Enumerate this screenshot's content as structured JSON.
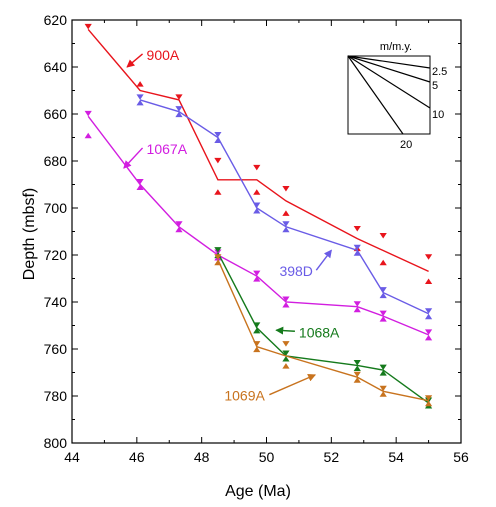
{
  "chart_data": {
    "type": "line",
    "xlabel": "Age (Ma)",
    "ylabel": "Depth (mbsf)",
    "xlim": [
      44,
      56
    ],
    "ylim": [
      620,
      800
    ],
    "y_inverted": true,
    "x_ticks": [
      44,
      46,
      48,
      50,
      52,
      54,
      56
    ],
    "y_ticks": [
      620,
      640,
      660,
      680,
      700,
      720,
      740,
      760,
      780,
      800
    ],
    "legend": "none",
    "series": [
      {
        "name": "900A",
        "color": "#e8141c",
        "line": [
          [
            44.5,
            624
          ],
          [
            46.1,
            650
          ],
          [
            47.3,
            654
          ],
          [
            48.5,
            688
          ],
          [
            49.7,
            688
          ],
          [
            50.6,
            697
          ],
          [
            52.8,
            713
          ],
          [
            55.0,
            727
          ]
        ],
        "points": [
          {
            "x": 44.5,
            "y": 624,
            "m": "dn"
          },
          {
            "x": 46.1,
            "y": 646,
            "m": "up"
          },
          {
            "x": 47.3,
            "y": 654,
            "m": "dn"
          },
          {
            "x": 48.5,
            "y": 681,
            "m": "dn"
          },
          {
            "x": 48.5,
            "y": 692,
            "m": "up"
          },
          {
            "x": 49.7,
            "y": 684,
            "m": "dn"
          },
          {
            "x": 49.7,
            "y": 692,
            "m": "up"
          },
          {
            "x": 50.6,
            "y": 693,
            "m": "dn"
          },
          {
            "x": 50.6,
            "y": 701,
            "m": "up"
          },
          {
            "x": 52.8,
            "y": 710,
            "m": "dn"
          },
          {
            "x": 52.8,
            "y": 716,
            "m": "up"
          },
          {
            "x": 53.6,
            "y": 713,
            "m": "dn"
          },
          {
            "x": 53.6,
            "y": 722,
            "m": "up"
          },
          {
            "x": 55.0,
            "y": 722,
            "m": "dn"
          },
          {
            "x": 55.0,
            "y": 730,
            "m": "up"
          }
        ]
      },
      {
        "name": "398D",
        "color": "#6a5ce6",
        "line": [
          [
            46.1,
            654
          ],
          [
            47.3,
            659
          ],
          [
            48.5,
            670
          ],
          [
            49.7,
            700
          ],
          [
            50.6,
            708
          ],
          [
            52.8,
            718
          ],
          [
            53.6,
            736
          ],
          [
            55.0,
            745
          ]
        ],
        "points": [
          {
            "x": 46.1,
            "y": 654,
            "m": "bt"
          },
          {
            "x": 47.3,
            "y": 659,
            "m": "bt"
          },
          {
            "x": 48.5,
            "y": 670,
            "m": "bt"
          },
          {
            "x": 49.7,
            "y": 700,
            "m": "bt"
          },
          {
            "x": 50.6,
            "y": 708,
            "m": "bt"
          },
          {
            "x": 52.8,
            "y": 718,
            "m": "bt"
          },
          {
            "x": 53.6,
            "y": 736,
            "m": "bt"
          },
          {
            "x": 55.0,
            "y": 745,
            "m": "bt"
          }
        ]
      },
      {
        "name": "1067A",
        "color": "#d21ee0",
        "line": [
          [
            44.5,
            661
          ],
          [
            46.1,
            690
          ],
          [
            47.3,
            708
          ],
          [
            48.5,
            720
          ],
          [
            49.7,
            729
          ],
          [
            50.6,
            740
          ],
          [
            52.8,
            742
          ],
          [
            53.6,
            746
          ],
          [
            55.0,
            754
          ]
        ],
        "points": [
          {
            "x": 44.5,
            "y": 661,
            "m": "dn"
          },
          {
            "x": 44.5,
            "y": 668,
            "m": "up"
          },
          {
            "x": 46.1,
            "y": 690,
            "m": "bt"
          },
          {
            "x": 47.3,
            "y": 708,
            "m": "bt"
          },
          {
            "x": 48.5,
            "y": 720,
            "m": "bt"
          },
          {
            "x": 49.7,
            "y": 729,
            "m": "bt"
          },
          {
            "x": 50.6,
            "y": 740,
            "m": "bt"
          },
          {
            "x": 52.8,
            "y": 742,
            "m": "bt"
          },
          {
            "x": 53.6,
            "y": 746,
            "m": "bt"
          },
          {
            "x": 55.0,
            "y": 754,
            "m": "bt"
          }
        ]
      },
      {
        "name": "1068A",
        "color": "#157a1c",
        "line": [
          [
            48.5,
            719
          ],
          [
            49.7,
            751
          ],
          [
            50.6,
            763
          ],
          [
            52.8,
            767
          ],
          [
            53.6,
            769
          ],
          [
            55.0,
            783
          ]
        ],
        "points": [
          {
            "x": 48.5,
            "y": 719,
            "m": "bt"
          },
          {
            "x": 49.7,
            "y": 751,
            "m": "bt"
          },
          {
            "x": 50.6,
            "y": 763,
            "m": "bt"
          },
          {
            "x": 52.8,
            "y": 767,
            "m": "bt"
          },
          {
            "x": 53.6,
            "y": 769,
            "m": "bt"
          },
          {
            "x": 55.0,
            "y": 783,
            "m": "bt"
          }
        ]
      },
      {
        "name": "1069A",
        "color": "#c8731e",
        "line": [
          [
            48.5,
            722
          ],
          [
            49.7,
            759
          ],
          [
            50.6,
            763
          ],
          [
            52.8,
            772
          ],
          [
            53.6,
            778
          ],
          [
            55.0,
            782
          ]
        ],
        "points": [
          {
            "x": 48.5,
            "y": 722,
            "m": "bt"
          },
          {
            "x": 49.7,
            "y": 759,
            "m": "bt"
          },
          {
            "x": 50.6,
            "y": 759,
            "m": "dn"
          },
          {
            "x": 50.6,
            "y": 766,
            "m": "up"
          },
          {
            "x": 52.8,
            "y": 772,
            "m": "bt"
          },
          {
            "x": 53.6,
            "y": 778,
            "m": "bt"
          },
          {
            "x": 55.0,
            "y": 782,
            "m": "bt"
          }
        ]
      }
    ],
    "annotations": [
      {
        "series": 0,
        "text": "900A",
        "x": 46.3,
        "y": 637,
        "arrow_to": [
          45.7,
          640
        ]
      },
      {
        "series": 2,
        "text": "1067A",
        "x": 46.3,
        "y": 677,
        "arrow_to": [
          45.6,
          683
        ]
      },
      {
        "series": 1,
        "text": "398D",
        "x": 50.4,
        "y": 729,
        "arrow_to": [
          52.0,
          718
        ]
      },
      {
        "series": 3,
        "text": "1068A",
        "x": 51.0,
        "y": 755,
        "arrow_to": [
          50.3,
          752
        ]
      },
      {
        "series": 4,
        "text": "1069A",
        "x": 48.7,
        "y": 782,
        "arrow_to": [
          51.5,
          771
        ]
      }
    ],
    "inset": {
      "title": "m/m.y.",
      "rates": [
        "2.5",
        "5",
        "10",
        "20"
      ]
    }
  }
}
